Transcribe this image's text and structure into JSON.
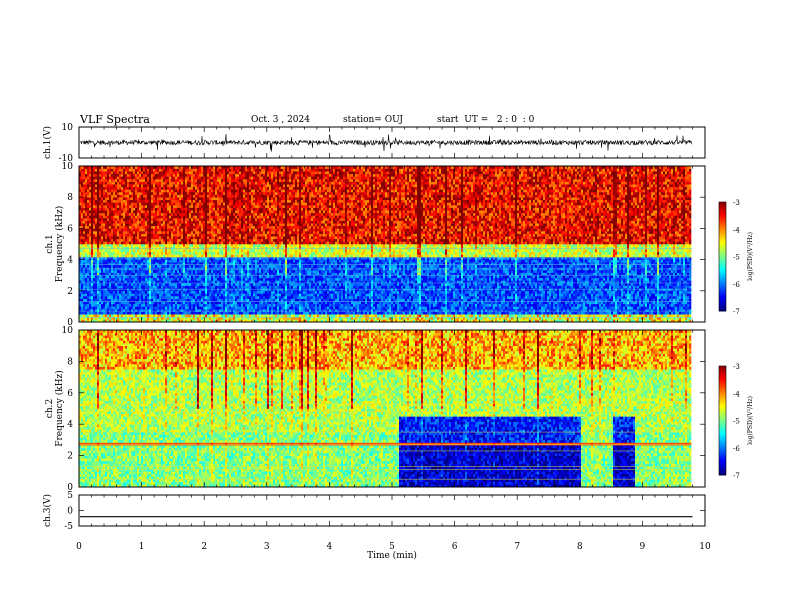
{
  "header": {
    "title": "VLF Spectra",
    "date": "Oct. 3 , 2024",
    "station": "station= OUJ",
    "start": "start  UT =   2 : 0  : 0"
  },
  "chart_data": [
    {
      "type": "line",
      "panel": "ch1-waveform",
      "ylabel": "ch.1(V)",
      "ylim": [
        -10,
        10
      ],
      "yticks": [
        "10",
        "-10"
      ],
      "x": [
        0,
        1,
        2,
        3,
        4,
        5,
        6,
        7,
        8,
        9,
        9.8
      ],
      "baseline": 0,
      "note_level": "noisy waveform, typical amplitude about ±2 V with spikes"
    },
    {
      "type": "heatmap",
      "panel": "ch1-spectrogram",
      "ylabel": "ch.1\nFrequency  (kHz)",
      "ylim": [
        0,
        10
      ],
      "yticks": [
        "0",
        "2",
        "4",
        "6",
        "8",
        "10"
      ],
      "colorbar": {
        "label": "log(PSD)(V²/Hz)",
        "ticks": [
          "-3",
          "-4",
          "-5",
          "-6",
          "-7"
        ],
        "range": [
          -7,
          -3
        ]
      },
      "bands_khz": [
        {
          "from": 5,
          "to": 10,
          "level": -3.3
        },
        {
          "from": 4.2,
          "to": 5,
          "level": -4.6
        },
        {
          "from": 0.5,
          "to": 4.2,
          "level": -6.3
        },
        {
          "from": 0,
          "to": 0.5,
          "level": -4.5
        }
      ]
    },
    {
      "type": "heatmap",
      "panel": "ch2-spectrogram",
      "ylabel": "ch.2\nFrequency  (kHz)",
      "ylim": [
        0,
        10
      ],
      "yticks": [
        "0",
        "2",
        "4",
        "6",
        "8",
        "10"
      ],
      "colorbar": {
        "label": "log(PSD)(V²/Hz)",
        "ticks": [
          "-3",
          "-4",
          "-5",
          "-6",
          "-7"
        ],
        "range": [
          -7,
          -3
        ]
      },
      "quiet_intervals_min": [
        [
          5.1,
          8.0
        ],
        [
          8.5,
          8.85
        ]
      ]
    },
    {
      "type": "line",
      "panel": "ch3-waveform",
      "ylabel": "ch.3(V)",
      "ylim": [
        -5,
        5
      ],
      "yticks": [
        "5",
        "0",
        "-5"
      ],
      "value": -2
    }
  ],
  "xaxis": {
    "label": "Time  (min)",
    "range": [
      0,
      10
    ],
    "ticks": [
      "0",
      "1",
      "2",
      "3",
      "4",
      "5",
      "6",
      "7",
      "8",
      "9",
      "10"
    ],
    "data_end": 9.8
  }
}
